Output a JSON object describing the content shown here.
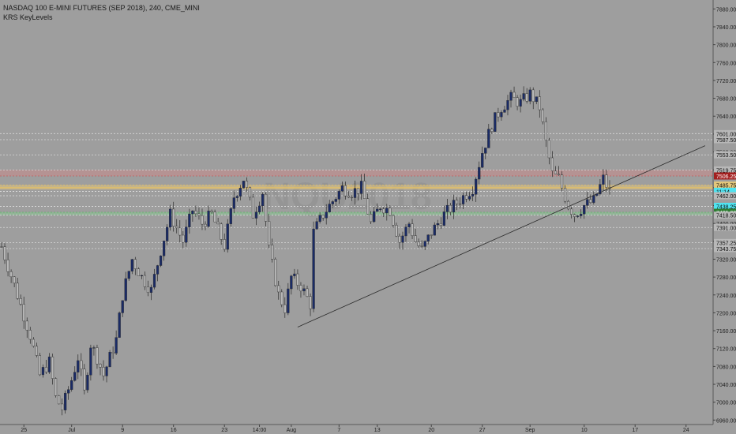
{
  "header": {
    "symbol": "NASDAQ 100 E-MINI FUTURES (SEP 2018), 240, CME_MINI",
    "indicator": "KRS KeyLevels"
  },
  "watermark": "NQU2018",
  "colors": {
    "background": "#9e9e9e",
    "up_candle": "#1a2b66",
    "down_candle": "#b8b8b8",
    "wick": "#2a2a2a",
    "resistance_zone": "#c98a8a",
    "pivot_zone": "#e3c77a",
    "support_zone": "#86c98f",
    "last_price_tag": "#4fe3f0",
    "resistance_tag": "#a31f1f",
    "support_tag": "#2e7d32"
  },
  "chart_data": {
    "type": "candlestick",
    "timeframe": "240",
    "ylim": [
      6950,
      7900
    ],
    "y_ticks": [
      6960,
      7000,
      7040,
      7080,
      7120,
      7160,
      7200,
      7240,
      7280,
      7320,
      7360,
      7400,
      7440,
      7480,
      7520,
      7560,
      7600,
      7640,
      7680,
      7720,
      7760,
      7800,
      7840,
      7880
    ],
    "x_ticks": [
      {
        "label": "25",
        "bar": 7
      },
      {
        "label": "Jul",
        "bar": 22
      },
      {
        "label": "9",
        "bar": 38
      },
      {
        "label": "16",
        "bar": 54
      },
      {
        "label": "23",
        "bar": 70
      },
      {
        "label": "14:00",
        "bar": 81
      },
      {
        "label": "Aug",
        "bar": 91
      },
      {
        "label": "7",
        "bar": 106
      },
      {
        "label": "13",
        "bar": 118
      },
      {
        "label": "20",
        "bar": 135
      },
      {
        "label": "27",
        "bar": 151
      },
      {
        "label": "Sep",
        "bar": 166
      },
      {
        "label": "10",
        "bar": 183
      },
      {
        "label": "17",
        "bar": 199
      },
      {
        "label": "24",
        "bar": 215
      }
    ],
    "total_bars": 224,
    "price_path": [
      [
        0,
        7348
      ],
      [
        5,
        7240
      ],
      [
        9,
        7150
      ],
      [
        12,
        7060
      ],
      [
        15,
        7090
      ],
      [
        17,
        7010
      ],
      [
        19,
        6985
      ],
      [
        22,
        7050
      ],
      [
        24,
        7100
      ],
      [
        26,
        7020
      ],
      [
        28,
        7130
      ],
      [
        30,
        7100
      ],
      [
        32,
        7060
      ],
      [
        34,
        7100
      ],
      [
        36,
        7140
      ],
      [
        38,
        7240
      ],
      [
        41,
        7320
      ],
      [
        44,
        7280
      ],
      [
        47,
        7250
      ],
      [
        50,
        7340
      ],
      [
        53,
        7420
      ],
      [
        57,
        7360
      ],
      [
        60,
        7430
      ],
      [
        63,
        7400
      ],
      [
        66,
        7420
      ],
      [
        70,
        7350
      ],
      [
        73,
        7460
      ],
      [
        76,
        7500
      ],
      [
        79,
        7420
      ],
      [
        82,
        7470
      ],
      [
        84,
        7340
      ],
      [
        87,
        7240
      ],
      [
        89,
        7210
      ],
      [
        91,
        7280
      ],
      [
        94,
        7260
      ],
      [
        97,
        7220
      ],
      [
        98,
        7380
      ],
      [
        101,
        7420
      ],
      [
        104,
        7450
      ],
      [
        107,
        7480
      ],
      [
        110,
        7470
      ],
      [
        113,
        7480
      ],
      [
        116,
        7400
      ],
      [
        119,
        7440
      ],
      [
        122,
        7430
      ],
      [
        125,
        7360
      ],
      [
        128,
        7400
      ],
      [
        130,
        7360
      ],
      [
        132,
        7340
      ],
      [
        135,
        7380
      ],
      [
        139,
        7420
      ],
      [
        142,
        7440
      ],
      [
        145,
        7460
      ],
      [
        148,
        7480
      ],
      [
        151,
        7560
      ],
      [
        154,
        7620
      ],
      [
        157,
        7660
      ],
      [
        160,
        7680
      ],
      [
        163,
        7670
      ],
      [
        166,
        7690
      ],
      [
        169,
        7660
      ],
      [
        171,
        7580
      ],
      [
        173,
        7510
      ],
      [
        175,
        7500
      ],
      [
        178,
        7440
      ],
      [
        180,
        7420
      ],
      [
        183,
        7440
      ],
      [
        186,
        7450
      ],
      [
        189,
        7500
      ],
      [
        191,
        7470
      ]
    ],
    "key_levels": [
      {
        "value": 7601.0,
        "label": "7601.00",
        "kind": "resistance"
      },
      {
        "value": 7587.5,
        "label": "7587.50",
        "kind": "resistance"
      },
      {
        "value": 7553.5,
        "label": "7553.50",
        "kind": "resistance"
      },
      {
        "value": 7519.75,
        "label": "7519.75",
        "kind": "resistance"
      },
      {
        "value": 7506.25,
        "label": "7506.25",
        "kind": "resistance-zone"
      },
      {
        "value": 7485.75,
        "label": "7485.75",
        "kind": "pivot"
      },
      {
        "value": 7472.0,
        "label": "11:14",
        "kind": "last-price"
      },
      {
        "value": 7462.0,
        "label": "7462.00",
        "kind": "support"
      },
      {
        "value": 7438.25,
        "label": "7438.25",
        "kind": "last-price"
      },
      {
        "value": 7425.0,
        "label": "7425.00",
        "kind": "support-zone"
      },
      {
        "value": 7418.5,
        "label": "7418.50",
        "kind": "support"
      },
      {
        "value": 7391.0,
        "label": "7391.00",
        "kind": "support"
      },
      {
        "value": 7357.25,
        "label": "7357.25",
        "kind": "support"
      },
      {
        "value": 7343.75,
        "label": "7343.75",
        "kind": "support"
      }
    ],
    "zones": [
      {
        "from": 7506.25,
        "to": 7519.75,
        "kind": "resistance"
      },
      {
        "from": 7476.0,
        "to": 7485.75,
        "kind": "pivot"
      },
      {
        "from": 7418.5,
        "to": 7425.0,
        "kind": "support"
      }
    ],
    "trendline": {
      "from": {
        "bar": 93,
        "price": 7168
      },
      "to": {
        "bar": 221,
        "price": 7574
      }
    },
    "horizontal_line": {
      "price": 7480
    }
  }
}
